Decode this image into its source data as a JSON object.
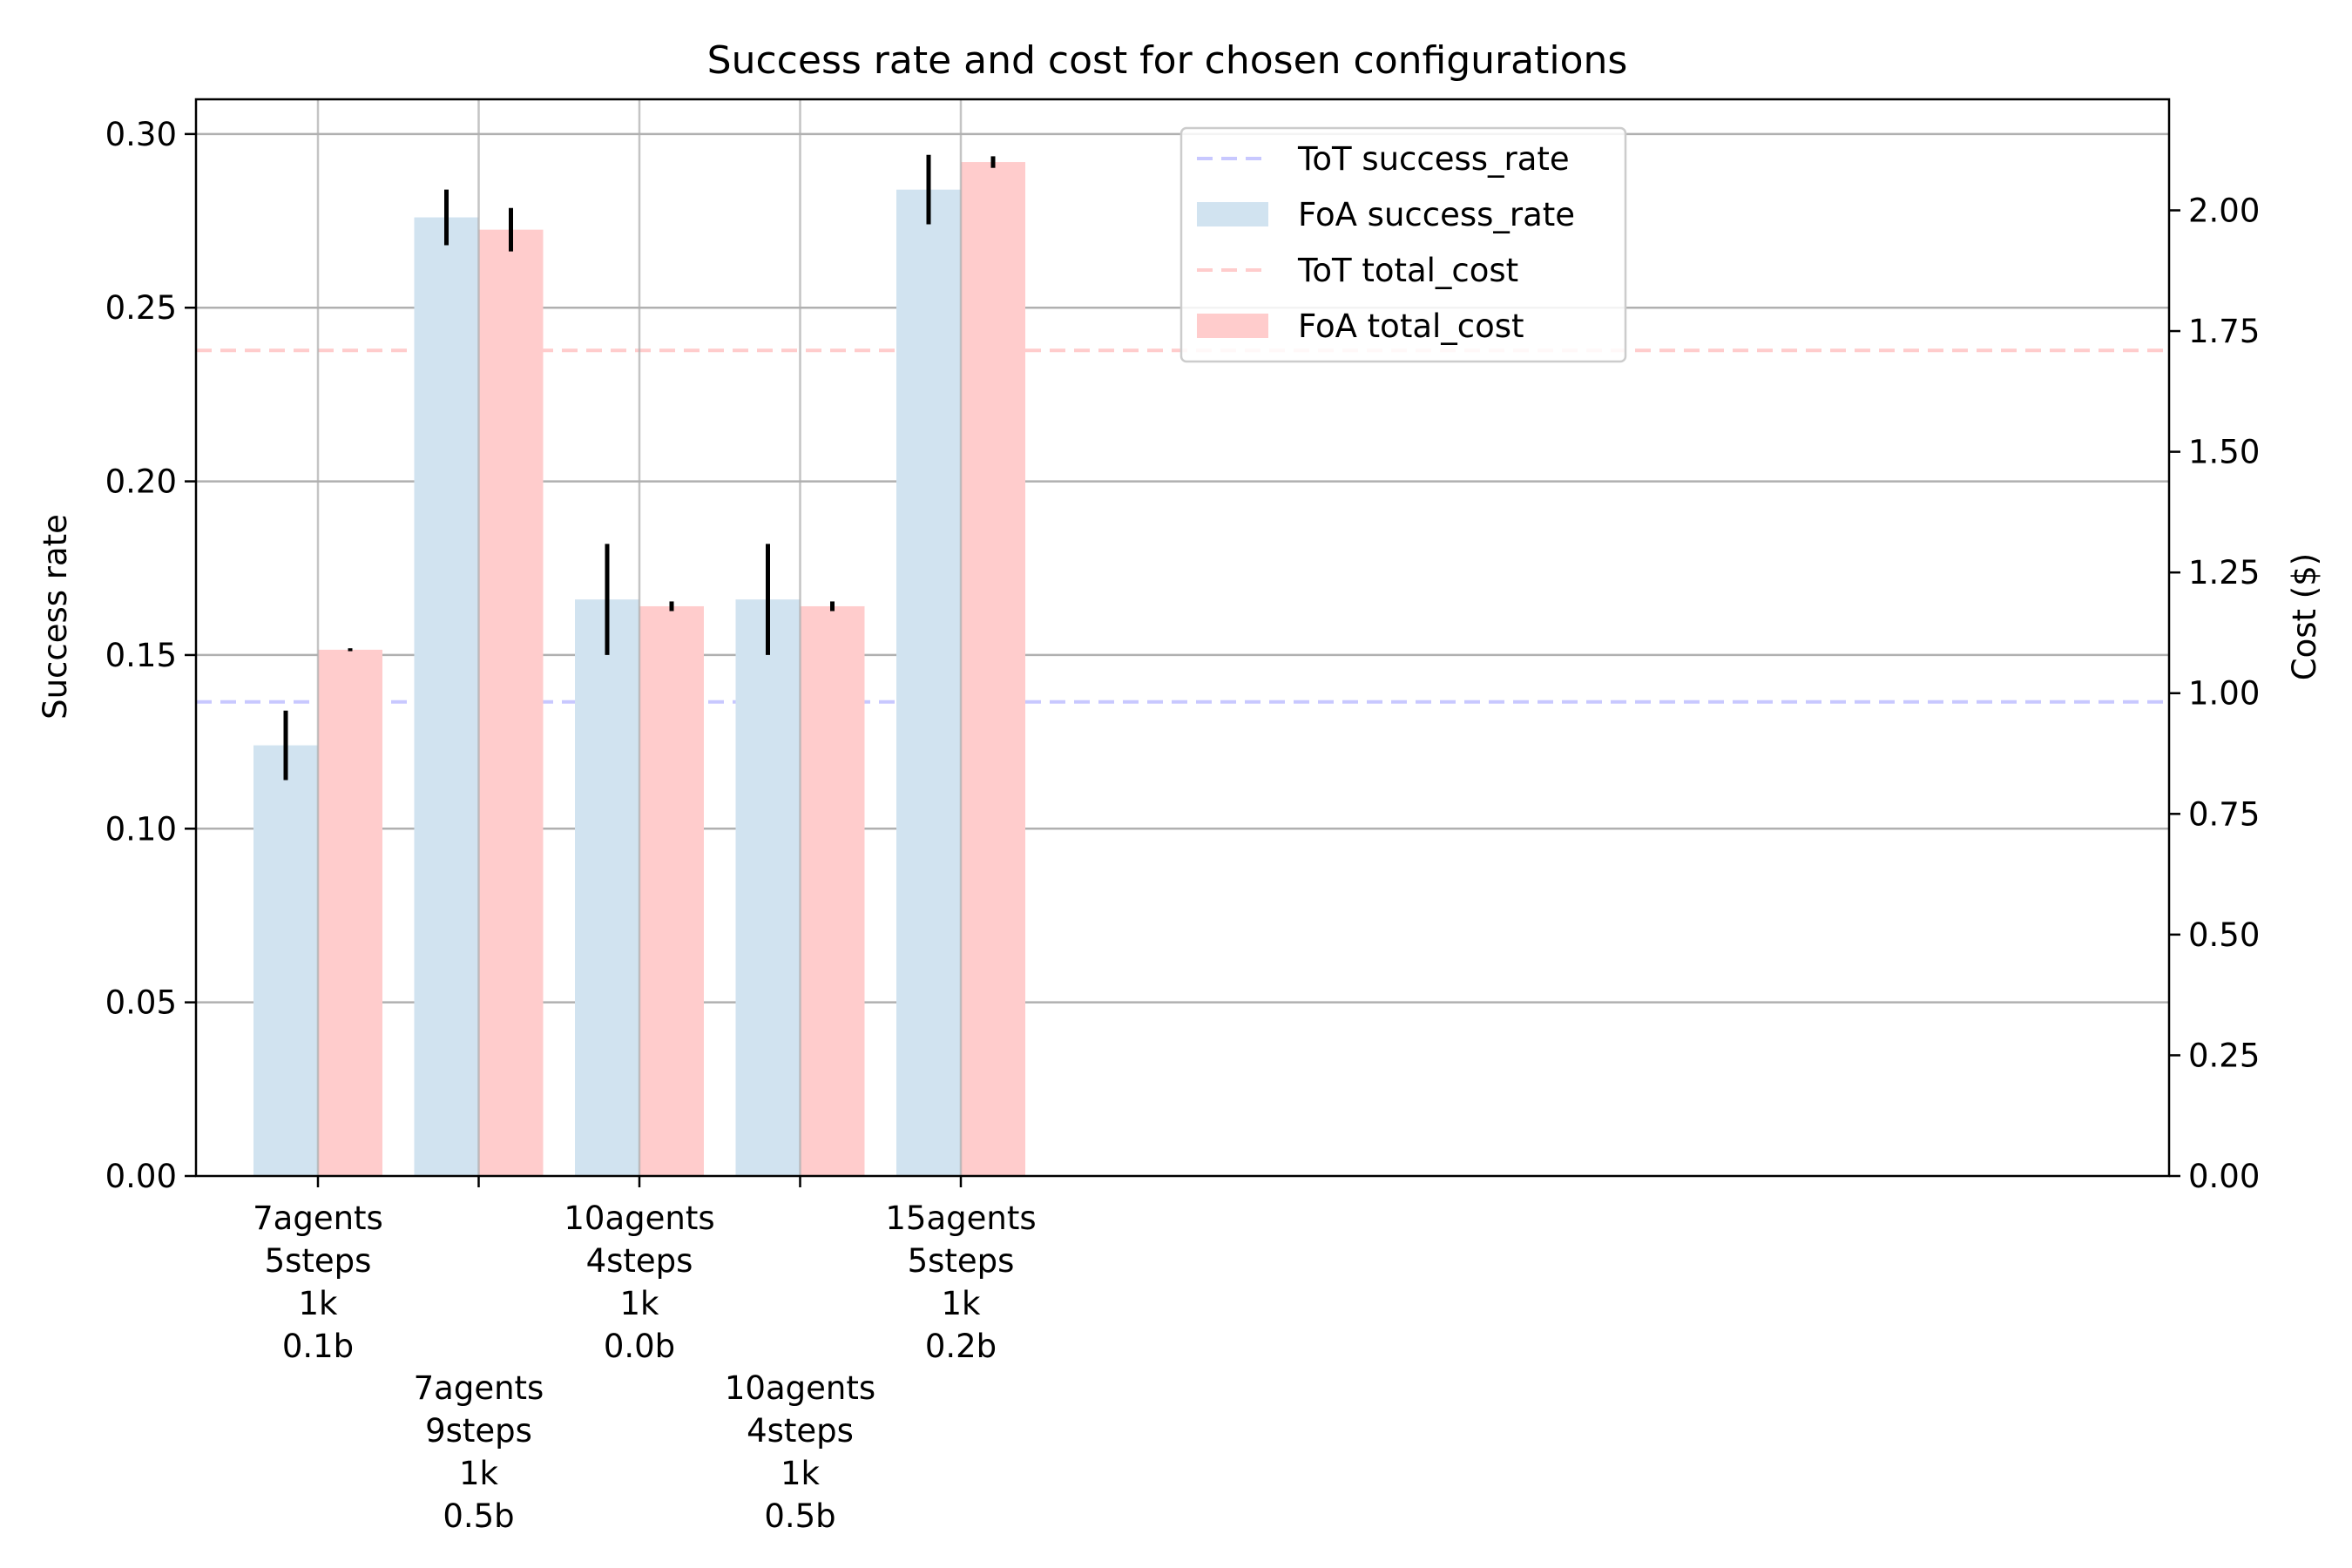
{
  "chart_data": {
    "type": "bar",
    "title": "Success rate and cost for chosen configurations",
    "xlabel": "",
    "ylabel": "Success rate",
    "y2label": "Cost ($)",
    "ylim": [
      0,
      0.31
    ],
    "y2lim": [
      0,
      2.23
    ],
    "yticks": [
      "0.00",
      "0.05",
      "0.10",
      "0.15",
      "0.20",
      "0.25",
      "0.30"
    ],
    "y2ticks": [
      "0.00",
      "0.25",
      "0.50",
      "0.75",
      "1.00",
      "1.25",
      "1.50",
      "1.75",
      "2.00"
    ],
    "grid": true,
    "legend_position": "top-center",
    "categories": [
      [
        "7agents",
        "5steps",
        "1k",
        "0.1b"
      ],
      [
        "7agents",
        "9steps",
        "1k",
        "0.5b"
      ],
      [
        "10agents",
        "4steps",
        "1k",
        "0.0b"
      ],
      [
        "10agents",
        "4steps",
        "1k",
        "0.5b"
      ],
      [
        "15agents",
        "5steps",
        "1k",
        "0.2b"
      ]
    ],
    "series": [
      {
        "name": "FoA success_rate",
        "axis": "left",
        "color": "#d1e3f0",
        "values": [
          0.124,
          0.276,
          0.166,
          0.166,
          0.284
        ],
        "errors": [
          0.01,
          0.008,
          0.016,
          0.016,
          0.01
        ]
      },
      {
        "name": "FoA total_cost",
        "axis": "right",
        "color": "#ffcccc",
        "values": [
          1.09,
          1.96,
          1.18,
          1.18,
          2.1
        ],
        "errors": [
          0.003,
          0.045,
          0.01,
          0.01,
          0.012
        ]
      }
    ],
    "reference_lines": [
      {
        "name": "ToT success_rate",
        "axis": "left",
        "value": 0.1365,
        "color": "#c8c8ff"
      },
      {
        "name": "ToT total_cost",
        "axis": "right",
        "value": 1.71,
        "color": "#ffcccc"
      }
    ],
    "legend": [
      {
        "label": "ToT success_rate",
        "kind": "line",
        "color": "#c8c8ff"
      },
      {
        "label": "FoA success_rate",
        "kind": "patch",
        "color": "#d1e3f0"
      },
      {
        "label": "ToT total_cost",
        "kind": "line",
        "color": "#ffcccc"
      },
      {
        "label": "FoA total_cost",
        "kind": "patch",
        "color": "#ffcccc"
      }
    ]
  }
}
